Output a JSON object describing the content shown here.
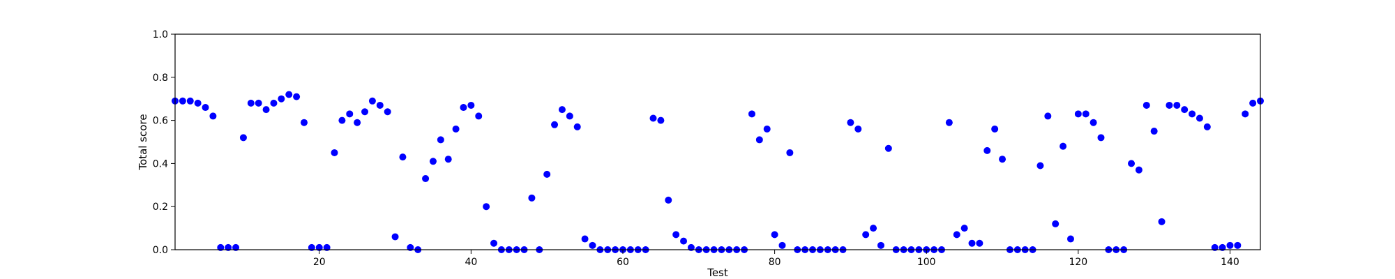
{
  "chart_data": {
    "type": "scatter",
    "xlabel": "Test",
    "ylabel": "Total score",
    "xlim": [
      1,
      144
    ],
    "ylim": [
      0.0,
      1.0
    ],
    "xticks": [
      20,
      40,
      60,
      80,
      100,
      120,
      140
    ],
    "yticks": [
      0.0,
      0.2,
      0.4,
      0.6,
      0.8,
      1.0
    ],
    "xtick_labels": [
      "20",
      "40",
      "60",
      "80",
      "100",
      "120",
      "140"
    ],
    "ytick_labels": [
      "0.0",
      "0.2",
      "0.4",
      "0.6",
      "0.8",
      "1.0"
    ],
    "grid": false,
    "marker_color": "#0000ff",
    "x": [
      1,
      2,
      3,
      4,
      5,
      6,
      7,
      8,
      9,
      10,
      11,
      12,
      13,
      14,
      15,
      16,
      17,
      18,
      19,
      20,
      21,
      22,
      23,
      24,
      25,
      26,
      27,
      28,
      29,
      30,
      31,
      32,
      33,
      34,
      35,
      36,
      37,
      38,
      39,
      40,
      41,
      42,
      43,
      44,
      45,
      46,
      47,
      48,
      49,
      50,
      51,
      52,
      53,
      54,
      55,
      56,
      57,
      58,
      59,
      60,
      61,
      62,
      63,
      64,
      65,
      66,
      67,
      68,
      69,
      70,
      71,
      72,
      73,
      74,
      75,
      76,
      77,
      78,
      79,
      80,
      81,
      82,
      83,
      84,
      85,
      86,
      87,
      88,
      89,
      90,
      91,
      92,
      93,
      94,
      95,
      96,
      97,
      98,
      99,
      100,
      101,
      102,
      103,
      104,
      105,
      106,
      107,
      108,
      109,
      110,
      111,
      112,
      113,
      114,
      115,
      116,
      117,
      118,
      119,
      120,
      121,
      122,
      123,
      124,
      125,
      126,
      127,
      128,
      129,
      130,
      131,
      132,
      133,
      134,
      135,
      136,
      137,
      138,
      139,
      140,
      141,
      142,
      143,
      144
    ],
    "y": [
      0.69,
      0.69,
      0.69,
      0.68,
      0.66,
      0.62,
      0.01,
      0.01,
      0.01,
      0.52,
      0.68,
      0.68,
      0.65,
      0.68,
      0.7,
      0.72,
      0.71,
      0.59,
      0.01,
      0.01,
      0.01,
      0.45,
      0.6,
      0.63,
      0.59,
      0.64,
      0.69,
      0.67,
      0.64,
      0.06,
      0.43,
      0.01,
      0.0,
      0.33,
      0.41,
      0.51,
      0.42,
      0.56,
      0.66,
      0.67,
      0.62,
      0.2,
      0.03,
      0.0,
      0.0,
      0.0,
      0.0,
      0.24,
      0.0,
      0.35,
      0.58,
      0.65,
      0.62,
      0.57,
      0.05,
      0.02,
      0.0,
      0.0,
      0.0,
      0.0,
      0.0,
      0.0,
      0.0,
      0.61,
      0.6,
      0.23,
      0.07,
      0.04,
      0.01,
      0.0,
      0.0,
      0.0,
      0.0,
      0.0,
      0.0,
      0.0,
      0.63,
      0.51,
      0.56,
      0.07,
      0.02,
      0.45,
      0.0,
      0.0,
      0.0,
      0.0,
      0.0,
      0.0,
      0.0,
      0.59,
      0.56,
      0.07,
      0.1,
      0.02,
      0.47,
      0.0,
      0.0,
      0.0,
      0.0,
      0.0,
      0.0,
      0.0,
      0.59,
      0.07,
      0.1,
      0.03,
      0.03,
      0.46,
      0.56,
      0.42,
      0.0,
      0.0,
      0.0,
      0.0,
      0.39,
      0.62,
      0.12,
      0.48,
      0.05,
      0.63,
      0.63,
      0.59,
      0.52,
      0.0,
      0.0,
      0.0,
      0.4,
      0.37,
      0.67,
      0.55,
      0.13,
      0.67,
      0.67,
      0.65,
      0.63,
      0.61,
      0.57,
      0.01,
      0.01,
      0.02,
      0.02,
      0.63,
      0.68,
      0.69
    ]
  }
}
